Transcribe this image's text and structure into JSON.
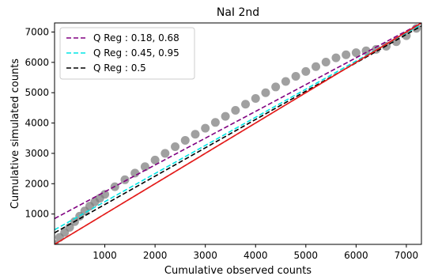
{
  "chart_data": {
    "type": "scatter",
    "title": "NaI 2nd",
    "xlabel": "Cumulative observed counts",
    "ylabel": "Cumulative simulated counts",
    "xlim": [
      0,
      7300
    ],
    "ylim": [
      0,
      7300
    ],
    "xticks": [
      1000,
      2000,
      3000,
      4000,
      5000,
      6000,
      7000
    ],
    "yticks": [
      1000,
      2000,
      3000,
      4000,
      5000,
      6000,
      7000
    ],
    "grid": false,
    "legend_position": "top-left",
    "scatter": {
      "color": "#808080",
      "x": [
        0,
        100,
        200,
        300,
        400,
        500,
        600,
        700,
        800,
        900,
        1000,
        1200,
        1400,
        1600,
        1800,
        2000,
        2200,
        2400,
        2600,
        2800,
        3000,
        3200,
        3400,
        3600,
        3800,
        4000,
        4200,
        4400,
        4600,
        4800,
        5000,
        5200,
        5400,
        5600,
        5800,
        6000,
        6200,
        6400,
        6600,
        6800,
        7000,
        7200
      ],
      "y": [
        0,
        230,
        390,
        560,
        750,
        930,
        1100,
        1260,
        1400,
        1520,
        1650,
        1900,
        2130,
        2350,
        2560,
        2780,
        3000,
        3220,
        3430,
        3630,
        3830,
        4020,
        4220,
        4420,
        4620,
        4810,
        5000,
        5190,
        5370,
        5540,
        5700,
        5860,
        6010,
        6150,
        6250,
        6320,
        6380,
        6430,
        6530,
        6680,
        6880,
        7120
      ]
    },
    "series": [
      {
        "name": "Q Reg : 0.18, 0.68",
        "style": "dashed",
        "color": "#800080",
        "x": [
          0,
          7300
        ],
        "y": [
          850,
          7300
        ]
      },
      {
        "name": "Q Reg : 0.45, 0.95",
        "style": "dashed",
        "color": "#00e5e5",
        "x": [
          0,
          7300
        ],
        "y": [
          480,
          7250
        ]
      },
      {
        "name": "Q Reg : 0.5",
        "style": "dashed",
        "color": "#000000",
        "x": [
          0,
          7300
        ],
        "y": [
          380,
          7200
        ]
      },
      {
        "name": "",
        "style": "dashed",
        "color": "#e8501c",
        "x": [
          0,
          7300
        ],
        "y": [
          0,
          7300
        ]
      },
      {
        "name": "",
        "style": "solid",
        "color": "#e31a1c",
        "x": [
          0,
          7300
        ],
        "y": [
          0,
          7300
        ]
      }
    ]
  }
}
